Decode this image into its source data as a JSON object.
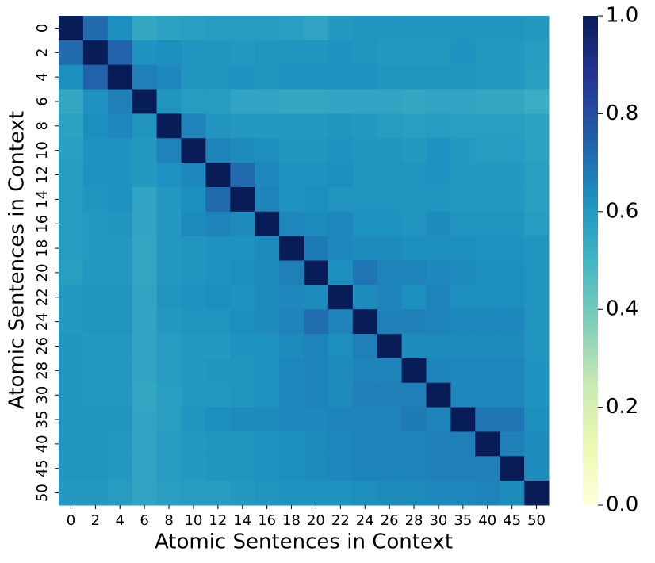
{
  "chart_data": {
    "type": "heatmap",
    "x_label": "Atomic Sentences in Context",
    "y_label": "Atomic Sentences in Context",
    "x_categories": [
      "0",
      "2",
      "4",
      "6",
      "8",
      "10",
      "12",
      "14",
      "16",
      "18",
      "20",
      "22",
      "24",
      "26",
      "28",
      "30",
      "35",
      "40",
      "45",
      "50"
    ],
    "y_categories": [
      "0",
      "2",
      "4",
      "6",
      "8",
      "10",
      "12",
      "14",
      "16",
      "18",
      "20",
      "22",
      "24",
      "26",
      "28",
      "30",
      "35",
      "40",
      "45",
      "50"
    ],
    "values": [
      [
        1,
        0.72,
        0.63,
        0.55,
        0.57,
        0.58,
        0.59,
        0.59,
        0.59,
        0.58,
        0.56,
        0.6,
        0.61,
        0.61,
        0.61,
        0.61,
        0.61,
        0.61,
        0.61,
        0.6
      ],
      [
        0.72,
        1,
        0.74,
        0.62,
        0.63,
        0.61,
        0.61,
        0.6,
        0.61,
        0.61,
        0.61,
        0.62,
        0.61,
        0.6,
        0.6,
        0.6,
        0.62,
        0.6,
        0.6,
        0.59
      ],
      [
        0.63,
        0.74,
        1,
        0.67,
        0.65,
        0.61,
        0.61,
        0.62,
        0.61,
        0.62,
        0.62,
        0.62,
        0.62,
        0.61,
        0.61,
        0.61,
        0.61,
        0.6,
        0.6,
        0.58
      ],
      [
        0.55,
        0.62,
        0.67,
        1,
        0.61,
        0.59,
        0.59,
        0.56,
        0.56,
        0.55,
        0.55,
        0.56,
        0.56,
        0.56,
        0.55,
        0.56,
        0.56,
        0.55,
        0.55,
        0.53
      ],
      [
        0.57,
        0.63,
        0.65,
        0.61,
        1,
        0.66,
        0.61,
        0.6,
        0.6,
        0.6,
        0.6,
        0.61,
        0.6,
        0.59,
        0.58,
        0.59,
        0.58,
        0.58,
        0.58,
        0.57
      ],
      [
        0.58,
        0.62,
        0.62,
        0.6,
        0.66,
        1,
        0.66,
        0.64,
        0.63,
        0.61,
        0.61,
        0.62,
        0.61,
        0.61,
        0.6,
        0.62,
        0.6,
        0.59,
        0.59,
        0.57
      ],
      [
        0.59,
        0.62,
        0.62,
        0.6,
        0.62,
        0.65,
        1,
        0.72,
        0.65,
        0.62,
        0.62,
        0.63,
        0.61,
        0.61,
        0.61,
        0.62,
        0.6,
        0.6,
        0.6,
        0.58
      ],
      [
        0.59,
        0.61,
        0.62,
        0.56,
        0.6,
        0.63,
        0.72,
        1,
        0.66,
        0.62,
        0.63,
        0.61,
        0.61,
        0.61,
        0.61,
        0.61,
        0.6,
        0.6,
        0.6,
        0.58
      ],
      [
        0.59,
        0.6,
        0.61,
        0.56,
        0.6,
        0.64,
        0.66,
        0.64,
        1,
        0.65,
        0.64,
        0.65,
        0.62,
        0.62,
        0.61,
        0.64,
        0.61,
        0.61,
        0.61,
        0.59
      ],
      [
        0.59,
        0.6,
        0.6,
        0.55,
        0.6,
        0.61,
        0.62,
        0.62,
        0.64,
        1,
        0.68,
        0.65,
        0.64,
        0.64,
        0.63,
        0.63,
        0.63,
        0.62,
        0.62,
        0.61
      ],
      [
        0.58,
        0.6,
        0.6,
        0.55,
        0.6,
        0.61,
        0.62,
        0.63,
        0.64,
        0.67,
        1,
        0.63,
        0.69,
        0.66,
        0.66,
        0.65,
        0.64,
        0.63,
        0.63,
        0.61
      ],
      [
        0.6,
        0.61,
        0.61,
        0.56,
        0.61,
        0.62,
        0.63,
        0.62,
        0.64,
        0.65,
        0.64,
        1,
        0.64,
        0.66,
        0.63,
        0.66,
        0.63,
        0.63,
        0.63,
        0.61
      ],
      [
        0.6,
        0.61,
        0.61,
        0.56,
        0.6,
        0.61,
        0.61,
        0.63,
        0.64,
        0.66,
        0.71,
        0.66,
        1,
        0.67,
        0.67,
        0.66,
        0.65,
        0.65,
        0.65,
        0.61
      ],
      [
        0.61,
        0.6,
        0.6,
        0.56,
        0.59,
        0.6,
        0.6,
        0.62,
        0.62,
        0.64,
        0.66,
        0.63,
        0.67,
        1,
        0.64,
        0.64,
        0.64,
        0.64,
        0.64,
        0.61
      ],
      [
        0.61,
        0.6,
        0.6,
        0.56,
        0.59,
        0.6,
        0.61,
        0.61,
        0.62,
        0.65,
        0.66,
        0.64,
        0.66,
        0.66,
        1,
        0.66,
        0.65,
        0.65,
        0.65,
        0.62
      ],
      [
        0.61,
        0.6,
        0.6,
        0.55,
        0.58,
        0.6,
        0.6,
        0.61,
        0.62,
        0.65,
        0.66,
        0.64,
        0.67,
        0.67,
        0.67,
        1,
        0.65,
        0.65,
        0.65,
        0.62
      ],
      [
        0.61,
        0.61,
        0.61,
        0.56,
        0.58,
        0.61,
        0.63,
        0.64,
        0.64,
        0.65,
        0.65,
        0.66,
        0.66,
        0.66,
        0.68,
        0.66,
        1,
        0.69,
        0.69,
        0.63
      ],
      [
        0.61,
        0.61,
        0.6,
        0.56,
        0.59,
        0.6,
        0.61,
        0.61,
        0.62,
        0.63,
        0.64,
        0.65,
        0.66,
        0.66,
        0.66,
        0.67,
        0.67,
        1,
        0.67,
        0.64
      ],
      [
        0.61,
        0.61,
        0.6,
        0.56,
        0.59,
        0.6,
        0.61,
        0.61,
        0.62,
        0.63,
        0.64,
        0.65,
        0.66,
        0.66,
        0.66,
        0.67,
        0.67,
        0.67,
        1,
        0.64
      ],
      [
        0.6,
        0.6,
        0.59,
        0.56,
        0.58,
        0.59,
        0.59,
        0.6,
        0.61,
        0.62,
        0.62,
        0.62,
        0.63,
        0.64,
        0.64,
        0.65,
        0.65,
        0.66,
        0.64,
        1
      ]
    ],
    "zlim": [
      0,
      1
    ],
    "zticks": [
      {
        "value": 0,
        "label": "0.0"
      },
      {
        "value": 0.2,
        "label": "0.2"
      },
      {
        "value": 0.4,
        "label": "0.4"
      },
      {
        "value": 0.6,
        "label": "0.6"
      },
      {
        "value": 0.8,
        "label": "0.8"
      },
      {
        "value": 1,
        "label": "1.0"
      }
    ],
    "colorscale": [
      "#ffffd9",
      "#edf8b1",
      "#c7e9b4",
      "#7fcdbb",
      "#41b6c4",
      "#1d91c0",
      "#225ea8",
      "#253494",
      "#081d58"
    ]
  }
}
